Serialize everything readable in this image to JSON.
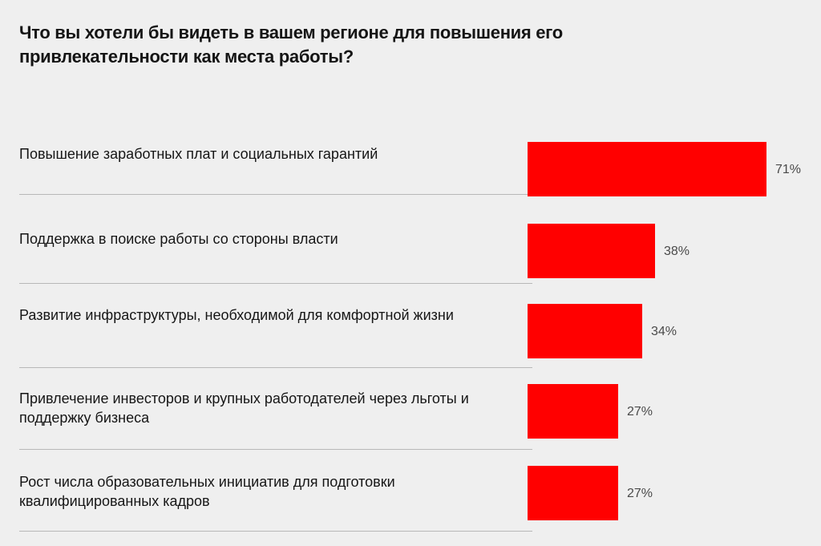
{
  "title": "Что вы хотели бы видеть в вашем регионе для повышения его привлекательности как места работы?",
  "chart_data": {
    "type": "bar",
    "orientation": "horizontal",
    "title": "Что вы хотели бы видеть в вашем регионе для повышения его привлекательности как места работы?",
    "categories": [
      "Повышение заработных плат и социальных гарантий",
      "Поддержка в поиске работы со стороны власти",
      "Развитие инфраструктуры, необходимой для комфортной жизни",
      "Привлечение инвесторов и крупных работодателей через льготы и поддержку бизнеса",
      "Рост числа образовательных инициатив для подготовки квалифицированных кадров"
    ],
    "values": [
      71,
      38,
      34,
      27,
      27
    ],
    "value_labels": [
      "71%",
      "38%",
      "34%",
      "27%",
      "27%"
    ],
    "unit": "%",
    "xlim": [
      0,
      71
    ],
    "grid": false,
    "bar_color": "#ff0000",
    "background_color": "#efefef"
  }
}
